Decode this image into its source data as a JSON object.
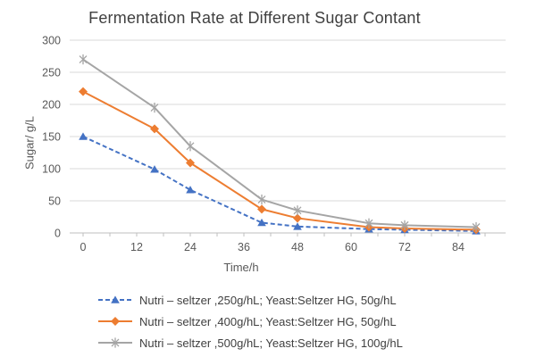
{
  "chart_data": {
    "type": "line",
    "title": "Fermentation Rate at Different Sugar Contant",
    "xlabel": "Time/h",
    "ylabel": "Sugar/ g/L",
    "grid": true,
    "legend_position": "bottom",
    "xlim": [
      0,
      94
    ],
    "ylim": [
      0,
      300
    ],
    "x_ticks": [
      0,
      12,
      24,
      36,
      48,
      60,
      72,
      84
    ],
    "y_ticks": [
      0,
      50,
      100,
      150,
      200,
      250,
      300
    ],
    "x": [
      0,
      16,
      24,
      40,
      48,
      64,
      72,
      88
    ],
    "series": [
      {
        "name": "Nutri – seltzer ,250g/hL; Yeast:Seltzer HG, 50g/hL",
        "color": "#4472C4",
        "marker": "triangle",
        "line": "dashed",
        "values": [
          150,
          99,
          67,
          16,
          10,
          6,
          5,
          3
        ]
      },
      {
        "name": "Nutri – seltzer ,400g/hL; Yeast:Seltzer HG, 50g/hL",
        "color": "#ED7D31",
        "marker": "diamond",
        "line": "solid",
        "values": [
          220,
          162,
          109,
          37,
          23,
          9,
          7,
          5
        ]
      },
      {
        "name": "Nutri – seltzer ,500g/hL; Yeast:Seltzer HG, 100g/hL",
        "color": "#A5A5A5",
        "marker": "star",
        "line": "solid",
        "values": [
          270,
          195,
          135,
          52,
          35,
          15,
          12,
          9
        ]
      }
    ],
    "colors": {
      "gridline": "#D9D9D9",
      "axis": "#BFBFBF",
      "tick_label": "#595959",
      "title_text": "#404040"
    }
  }
}
